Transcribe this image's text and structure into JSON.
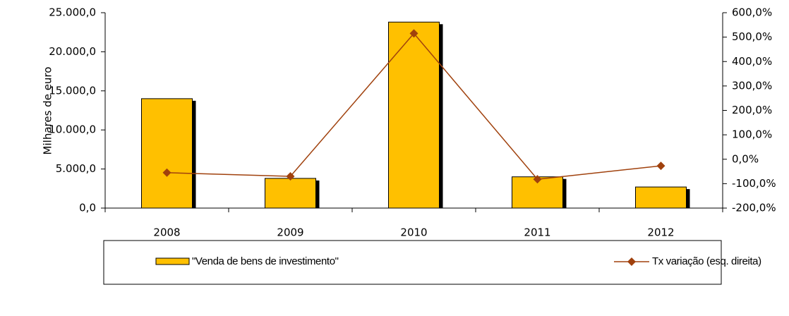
{
  "chart_data": {
    "type": "bar",
    "y_label": "Milhares de euro",
    "categories": [
      "2008",
      "2009",
      "2010",
      "2011",
      "2012"
    ],
    "series": [
      {
        "name": "\"Venda de bens de investimento\"",
        "color": "#ffc000",
        "type": "bar",
        "values": [
          14000,
          3800,
          23800,
          4000,
          2700
        ]
      },
      {
        "name": "Tx variação (esq. direita)",
        "color": "#a0410d",
        "type": "line",
        "axis": "y2",
        "values": [
          -55,
          -70,
          515,
          -82,
          -27
        ]
      }
    ],
    "ylim": [
      0,
      25000
    ],
    "yticks": [
      {
        "value": 0,
        "label": "0,0"
      },
      {
        "value": 5000,
        "label": "5.000,0"
      },
      {
        "value": 10000,
        "label": "10.000,0"
      },
      {
        "value": 15000,
        "label": "15.000,0"
      },
      {
        "value": 20000,
        "label": "20.000,0"
      },
      {
        "value": 25000,
        "label": "25.000,0"
      }
    ],
    "y2lim": [
      -200,
      600
    ],
    "y2ticks": [
      {
        "value": -200,
        "label": "-200,0%"
      },
      {
        "value": -100,
        "label": "-100,0%"
      },
      {
        "value": 0,
        "label": "0,0%"
      },
      {
        "value": 100,
        "label": "100,0%"
      },
      {
        "value": 200,
        "label": "200,0%"
      },
      {
        "value": 300,
        "label": "300,0%"
      },
      {
        "value": 400,
        "label": "400,0%"
      },
      {
        "value": 500,
        "label": "500,0%"
      },
      {
        "value": 600,
        "label": "600,0%"
      }
    ],
    "grid": false,
    "legend": "bottom"
  }
}
